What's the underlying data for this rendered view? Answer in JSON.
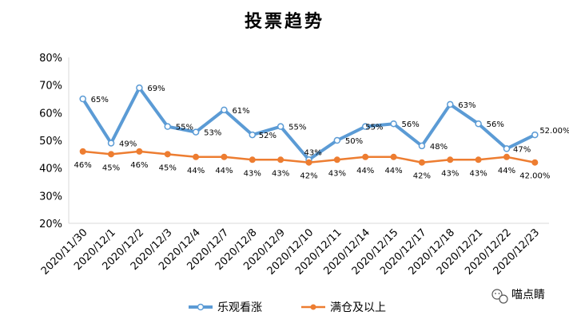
{
  "chart_data": {
    "type": "line",
    "title": "投票趋势",
    "categories": [
      "2020/11/30",
      "2020/12/1",
      "2020/12/2",
      "2020/12/3",
      "2020/12/4",
      "2020/12/7",
      "2020/12/8",
      "2020/12/9",
      "2020/12/10",
      "2020/12/11",
      "2020/12/14",
      "2020/12/15",
      "2020/12/17",
      "2020/12/18",
      "2020/12/21",
      "2020/12/22",
      "2020/12/23"
    ],
    "y_ticks": [
      "20%",
      "30%",
      "40%",
      "50%",
      "60%",
      "70%",
      "80%"
    ],
    "ylim": [
      20,
      80
    ],
    "grid": false,
    "legend_position": "bottom",
    "series": [
      {
        "name": "乐观看涨",
        "color": "#5B9BD5",
        "values": [
          65,
          49,
          69,
          55,
          53,
          61,
          52,
          55,
          43,
          50,
          55,
          56,
          48,
          63,
          56,
          47,
          52
        ],
        "labels": [
          "65%",
          "49%",
          "69%",
          "55%",
          "53%",
          "61%",
          "52%",
          "55%",
          "43%",
          "50%",
          "55%",
          "56%",
          "48%",
          "63%",
          "56%",
          "47%",
          "52.00%"
        ]
      },
      {
        "name": "满仓及以上",
        "color": "#ED7D31",
        "values": [
          46,
          45,
          46,
          45,
          44,
          44,
          43,
          43,
          42,
          43,
          44,
          44,
          42,
          43,
          43,
          44,
          42
        ],
        "labels": [
          "46%",
          "45%",
          "46%",
          "45%",
          "44%",
          "44%",
          "43%",
          "43%",
          "42%",
          "43%",
          "44%",
          "44%",
          "42%",
          "43%",
          "43%",
          "44%",
          "42.00%"
        ]
      }
    ]
  },
  "watermark": {
    "icon": "wechat-icon",
    "text": "喵点睛"
  }
}
